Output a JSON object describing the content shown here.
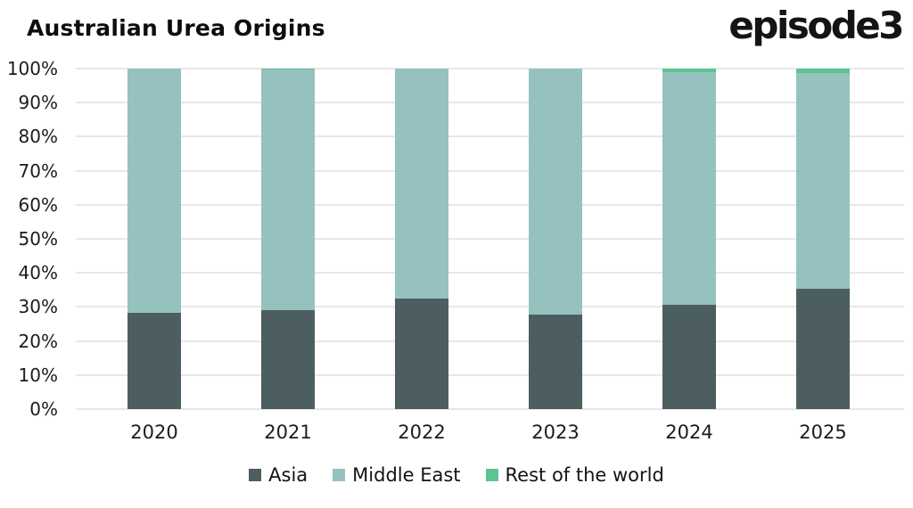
{
  "header": {
    "title": "Australian Urea Origins",
    "logo": "episode3"
  },
  "chart_data": {
    "type": "bar",
    "stacked": true,
    "title": "Australian Urea Origins",
    "categories": [
      "2020",
      "2021",
      "2022",
      "2023",
      "2024",
      "2025"
    ],
    "series": [
      {
        "name": "Asia",
        "color": "#4d5e60",
        "values": [
          28.2,
          29.0,
          32.5,
          27.7,
          30.7,
          35.4
        ]
      },
      {
        "name": "Middle East",
        "color": "#95c2bf",
        "values": [
          71.8,
          70.7,
          67.5,
          72.3,
          68.3,
          63.3
        ]
      },
      {
        "name": "Rest of the world",
        "color": "#5bc491",
        "values": [
          0.0,
          0.3,
          0.0,
          0.0,
          1.0,
          1.3
        ]
      }
    ],
    "xlabel": "",
    "ylabel": "",
    "ylim": [
      0,
      100
    ],
    "y_ticks": [
      "0%",
      "10%",
      "20%",
      "30%",
      "40%",
      "50%",
      "60%",
      "70%",
      "80%",
      "90%",
      "100%"
    ],
    "grid": "horizontal",
    "legend_position": "bottom"
  },
  "colors": {
    "background": "#ffffff",
    "gridline": "#e7e7e7",
    "text": "#1c1c1c"
  }
}
